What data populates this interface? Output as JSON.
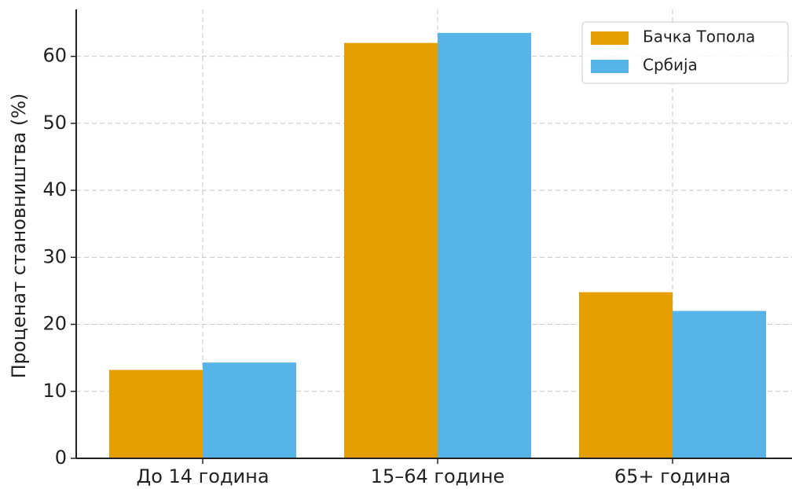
{
  "chart_data": {
    "type": "bar",
    "ylabel": "Проценат становништва (%)",
    "categories": [
      "До 14 година",
      "15–64 године",
      "65+ година"
    ],
    "series": [
      {
        "name": "Бачка Топола",
        "color": "#e69f00",
        "values": [
          13.2,
          62.0,
          24.8
        ]
      },
      {
        "name": "Србија",
        "color": "#56b4e9",
        "values": [
          14.3,
          63.5,
          22.0
        ]
      }
    ],
    "ylim": [
      0,
      67
    ],
    "yticks": [
      0,
      10,
      20,
      30,
      40,
      50,
      60
    ],
    "grid": true,
    "legend": "upper right"
  }
}
